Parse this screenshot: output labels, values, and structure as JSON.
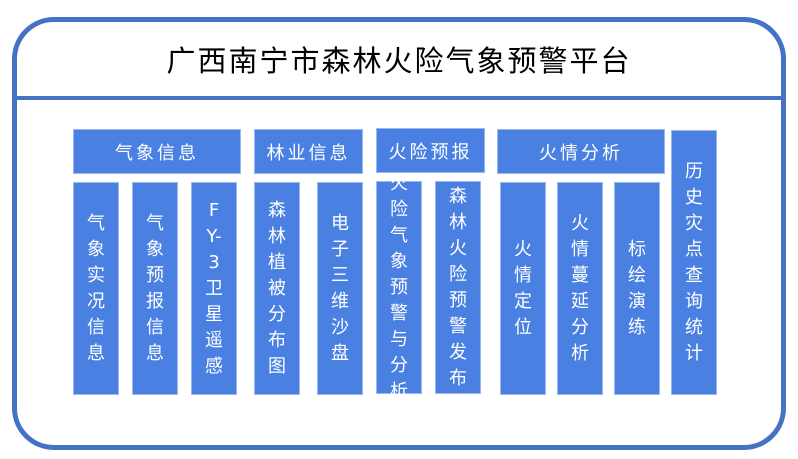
{
  "title": "广西南宁市森林火险气象预警平台",
  "colors": {
    "box_fill": "#4a80e2",
    "frame_border": "#4472c4",
    "text": "#ffffff"
  },
  "categories": [
    {
      "label": "气象信息",
      "items": [
        "气象实况信息",
        "气象预报信息",
        "FY-3卫星遥感"
      ]
    },
    {
      "label": "林业信息",
      "items": [
        "森林植被分布图",
        "电子三维沙盘"
      ]
    },
    {
      "label": "火险预报",
      "items": [
        "火险气象预警与分析",
        "森林火险预警发布"
      ]
    },
    {
      "label": "火情分析",
      "items": [
        "火情定位",
        "火情蔓延分析",
        "标绘演练"
      ]
    }
  ],
  "standalone": {
    "label": "历史灾点查询统计"
  }
}
